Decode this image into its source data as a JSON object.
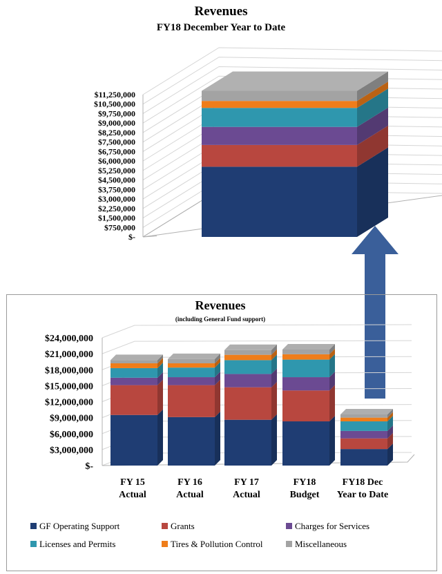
{
  "top_chart": {
    "title": "Revenues",
    "subtitle": "FY18 December Year to Date"
  },
  "bottom_chart": {
    "title": "Revenues",
    "subtitle": "(including General Fund support)"
  },
  "colors": {
    "GF Operating Support": "#1f3d73",
    "Grants": "#b8473f",
    "Charges for Services": "#6b4a92",
    "Licenses and Permits": "#2f97ae",
    "Tires & Pollution Control": "#ef7d1a",
    "Miscellaneous": "#a3a3a3",
    "arrow": "#3a5f9a"
  },
  "legend": [
    "GF Operating Support",
    "Grants",
    "Charges for Services",
    "Licenses and Permits",
    "Tires & Pollution Control",
    "Miscellaneous"
  ],
  "chart_data": [
    {
      "type": "bar",
      "stacked": true,
      "title": "Revenues",
      "subtitle": "FY18 December Year to Date",
      "categories": [
        "FY18 Dec Year to Date"
      ],
      "ylim": [
        0,
        11250000
      ],
      "yticks": [
        0,
        750000,
        1500000,
        2250000,
        3000000,
        3750000,
        4500000,
        5250000,
        6000000,
        6750000,
        7500000,
        8250000,
        9000000,
        9750000,
        10500000,
        11250000
      ],
      "ytick_labels": [
        "$-",
        "$750,000",
        "$1,500,000",
        "$2,250,000",
        "$3,000,000",
        "$3,750,000",
        "$4,500,000",
        "$5,250,000",
        "$6,000,000",
        "$6,750,000",
        "$7,500,000",
        "$8,250,000",
        "$9,000,000",
        "$9,750,000",
        "$10,500,000",
        "$11,250,000"
      ],
      "grid": true,
      "series": [
        {
          "name": "GF Operating Support",
          "values": [
            5550000
          ]
        },
        {
          "name": "Grants",
          "values": [
            1720000
          ]
        },
        {
          "name": "Charges for Services",
          "values": [
            1430000
          ]
        },
        {
          "name": "Licenses and Permits",
          "values": [
            1500000
          ]
        },
        {
          "name": "Tires & Pollution Control",
          "values": [
            550000
          ]
        },
        {
          "name": "Miscellaneous",
          "values": [
            800000
          ]
        }
      ]
    },
    {
      "type": "bar",
      "stacked": true,
      "title": "Revenues",
      "subtitle": "(including General Fund support)",
      "categories": [
        "FY 15 Actual",
        "FY 16 Actual",
        "FY 17 Actual",
        "FY18 Budget",
        "FY18 Dec Year to Date"
      ],
      "category_lines": [
        [
          "FY 15",
          "Actual"
        ],
        [
          "FY 16",
          "Actual"
        ],
        [
          "FY 17",
          "Actual"
        ],
        [
          "FY18",
          "Budget"
        ],
        [
          "FY18 Dec",
          "Year to Date"
        ]
      ],
      "ylim": [
        0,
        24000000
      ],
      "yticks": [
        0,
        3000000,
        6000000,
        9000000,
        12000000,
        15000000,
        18000000,
        21000000,
        24000000
      ],
      "ytick_labels": [
        "$-",
        "$3,000,000",
        "$6,000,000",
        "$9,000,000",
        "$12,000,000",
        "$15,000,000",
        "$18,000,000",
        "$21,000,000",
        "$24,000,000"
      ],
      "grid": true,
      "legend_position": "bottom",
      "series": [
        {
          "name": "GF Operating Support",
          "values": [
            9500000,
            9100000,
            8600000,
            8300000,
            3100000
          ]
        },
        {
          "name": "Grants",
          "values": [
            5600000,
            6000000,
            6100000,
            5800000,
            2000000
          ]
        },
        {
          "name": "Charges for Services",
          "values": [
            1400000,
            1500000,
            2500000,
            2500000,
            1400000
          ]
        },
        {
          "name": "Licenses and Permits",
          "values": [
            1800000,
            1800000,
            2600000,
            3300000,
            1800000
          ]
        },
        {
          "name": "Tires & Pollution Control",
          "values": [
            900000,
            800000,
            1000000,
            1000000,
            700000
          ]
        },
        {
          "name": "Miscellaneous",
          "values": [
            600000,
            800000,
            900000,
            900000,
            600000
          ]
        }
      ]
    }
  ]
}
